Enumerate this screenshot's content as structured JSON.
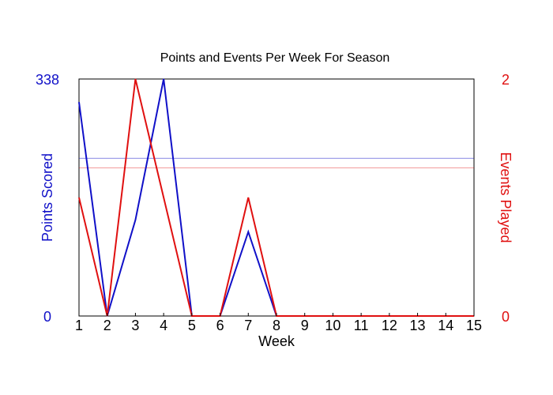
{
  "chart_data": {
    "type": "line",
    "title": "Points and Events Per Week For Season",
    "xlabel": "Week",
    "x": [
      1,
      2,
      3,
      4,
      5,
      6,
      7,
      8,
      9,
      10,
      11,
      12,
      13,
      14,
      15
    ],
    "x_tick_labels": [
      "1",
      "2",
      "3",
      "4",
      "5",
      "6",
      "7",
      "8",
      "9",
      "10",
      "11",
      "12",
      "13",
      "14",
      "15"
    ],
    "y_left": {
      "label": "Points Scored",
      "min_label": "0",
      "max_label": "338",
      "range": [
        0,
        338
      ],
      "color": "#1010c8"
    },
    "y_right": {
      "label": "Events Played",
      "min_label": "0",
      "max_label": "2",
      "range": [
        0,
        2
      ],
      "color": "#e01010"
    },
    "series": [
      {
        "axis": "left",
        "color": "#1010c8",
        "values": [
          305,
          0,
          137,
          338,
          0,
          0,
          120,
          0,
          0,
          0,
          0,
          0,
          0,
          0,
          0
        ],
        "average": 225
      },
      {
        "axis": "right",
        "color": "#e01010",
        "values": [
          1,
          0,
          2,
          1,
          0,
          0,
          1,
          0,
          0,
          0,
          0,
          0,
          0,
          0,
          0
        ],
        "average": 1.25
      }
    ],
    "grid": false,
    "legend": "none"
  }
}
